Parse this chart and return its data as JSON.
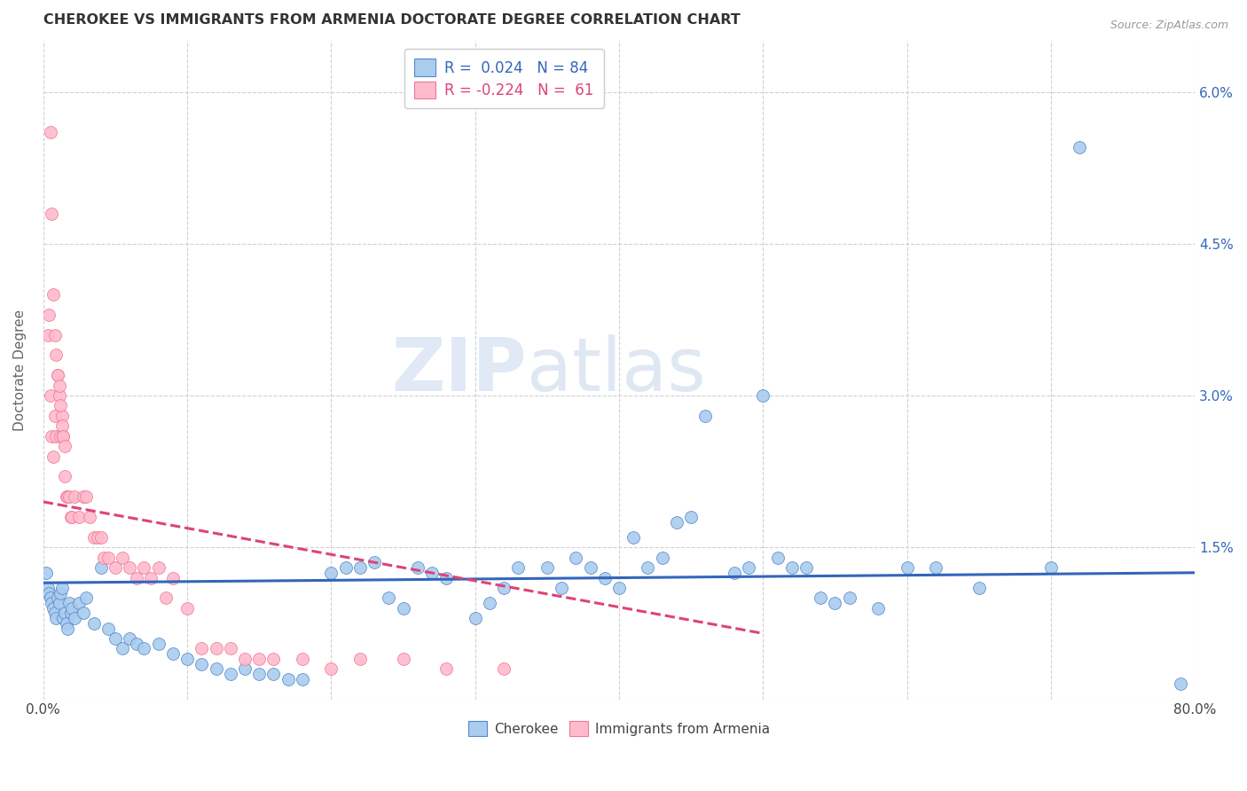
{
  "title": "CHEROKEE VS IMMIGRANTS FROM ARMENIA DOCTORATE DEGREE CORRELATION CHART",
  "source": "Source: ZipAtlas.com",
  "ylabel": "Doctorate Degree",
  "xlim": [
    0.0,
    0.8
  ],
  "ylim": [
    0.0,
    0.065
  ],
  "y_tick_positions": [
    0.0,
    0.015,
    0.03,
    0.045,
    0.06
  ],
  "y_tick_labels_right": [
    "",
    "1.5%",
    "3.0%",
    "4.5%",
    "6.0%"
  ],
  "x_tick_positions": [
    0.0,
    0.1,
    0.2,
    0.3,
    0.4,
    0.5,
    0.6,
    0.7,
    0.8
  ],
  "x_tick_labels": [
    "0.0%",
    "",
    "",
    "",
    "",
    "",
    "",
    "",
    "80.0%"
  ],
  "background_color": "#ffffff",
  "grid_color": "#d0d0d0",
  "watermark_zip": "ZIP",
  "watermark_atlas": "atlas",
  "color_cherokee_fill": "#aaccee",
  "color_cherokee_edge": "#5588cc",
  "color_armenia_fill": "#ffbbcc",
  "color_armenia_edge": "#ee7799",
  "color_cherokee_line": "#3366bb",
  "color_armenia_line": "#dd4477",
  "cherokee_line_x": [
    0.0,
    0.8
  ],
  "cherokee_line_y": [
    0.0115,
    0.0125
  ],
  "armenia_line_x": [
    0.0,
    0.5
  ],
  "armenia_line_y": [
    0.0195,
    0.0065
  ],
  "cherokee_x": [
    0.002,
    0.003,
    0.004,
    0.005,
    0.006,
    0.007,
    0.008,
    0.009,
    0.01,
    0.011,
    0.012,
    0.013,
    0.014,
    0.015,
    0.016,
    0.017,
    0.018,
    0.019,
    0.02,
    0.022,
    0.025,
    0.028,
    0.03,
    0.035,
    0.04,
    0.045,
    0.05,
    0.055,
    0.06,
    0.065,
    0.07,
    0.08,
    0.09,
    0.1,
    0.11,
    0.12,
    0.13,
    0.14,
    0.15,
    0.16,
    0.17,
    0.18,
    0.2,
    0.21,
    0.22,
    0.23,
    0.24,
    0.25,
    0.26,
    0.27,
    0.28,
    0.3,
    0.31,
    0.32,
    0.33,
    0.35,
    0.36,
    0.37,
    0.38,
    0.39,
    0.4,
    0.41,
    0.42,
    0.43,
    0.44,
    0.45,
    0.46,
    0.48,
    0.49,
    0.5,
    0.51,
    0.52,
    0.53,
    0.54,
    0.55,
    0.56,
    0.58,
    0.6,
    0.62,
    0.65,
    0.7,
    0.72,
    0.79
  ],
  "cherokee_y": [
    0.0125,
    0.011,
    0.0105,
    0.01,
    0.0095,
    0.009,
    0.0085,
    0.008,
    0.01,
    0.0095,
    0.0105,
    0.011,
    0.008,
    0.0085,
    0.0075,
    0.007,
    0.0095,
    0.0085,
    0.009,
    0.008,
    0.0095,
    0.0085,
    0.01,
    0.0075,
    0.013,
    0.007,
    0.006,
    0.005,
    0.006,
    0.0055,
    0.005,
    0.0055,
    0.0045,
    0.004,
    0.0035,
    0.003,
    0.0025,
    0.003,
    0.0025,
    0.0025,
    0.002,
    0.002,
    0.0125,
    0.013,
    0.013,
    0.0135,
    0.01,
    0.009,
    0.013,
    0.0125,
    0.012,
    0.008,
    0.0095,
    0.011,
    0.013,
    0.013,
    0.011,
    0.014,
    0.013,
    0.012,
    0.011,
    0.016,
    0.013,
    0.014,
    0.0175,
    0.018,
    0.028,
    0.0125,
    0.013,
    0.03,
    0.014,
    0.013,
    0.013,
    0.01,
    0.0095,
    0.01,
    0.009,
    0.013,
    0.013,
    0.011,
    0.013,
    0.0545,
    0.0015
  ],
  "armenia_x": [
    0.003,
    0.004,
    0.005,
    0.006,
    0.007,
    0.008,
    0.009,
    0.01,
    0.011,
    0.012,
    0.013,
    0.014,
    0.015,
    0.016,
    0.017,
    0.018,
    0.019,
    0.02,
    0.022,
    0.025,
    0.028,
    0.03,
    0.032,
    0.035,
    0.038,
    0.04,
    0.042,
    0.045,
    0.05,
    0.055,
    0.06,
    0.065,
    0.07,
    0.075,
    0.08,
    0.085,
    0.09,
    0.1,
    0.11,
    0.12,
    0.13,
    0.14,
    0.15,
    0.16,
    0.18,
    0.2,
    0.22,
    0.25,
    0.28,
    0.32,
    0.005,
    0.006,
    0.007,
    0.008,
    0.009,
    0.01,
    0.011,
    0.012,
    0.013,
    0.014,
    0.015
  ],
  "armenia_y": [
    0.036,
    0.038,
    0.03,
    0.026,
    0.024,
    0.028,
    0.026,
    0.032,
    0.03,
    0.026,
    0.028,
    0.026,
    0.022,
    0.02,
    0.02,
    0.02,
    0.018,
    0.018,
    0.02,
    0.018,
    0.02,
    0.02,
    0.018,
    0.016,
    0.016,
    0.016,
    0.014,
    0.014,
    0.013,
    0.014,
    0.013,
    0.012,
    0.013,
    0.012,
    0.013,
    0.01,
    0.012,
    0.009,
    0.005,
    0.005,
    0.005,
    0.004,
    0.004,
    0.004,
    0.004,
    0.003,
    0.004,
    0.004,
    0.003,
    0.003,
    0.056,
    0.048,
    0.04,
    0.036,
    0.034,
    0.032,
    0.031,
    0.029,
    0.027,
    0.026,
    0.025
  ]
}
